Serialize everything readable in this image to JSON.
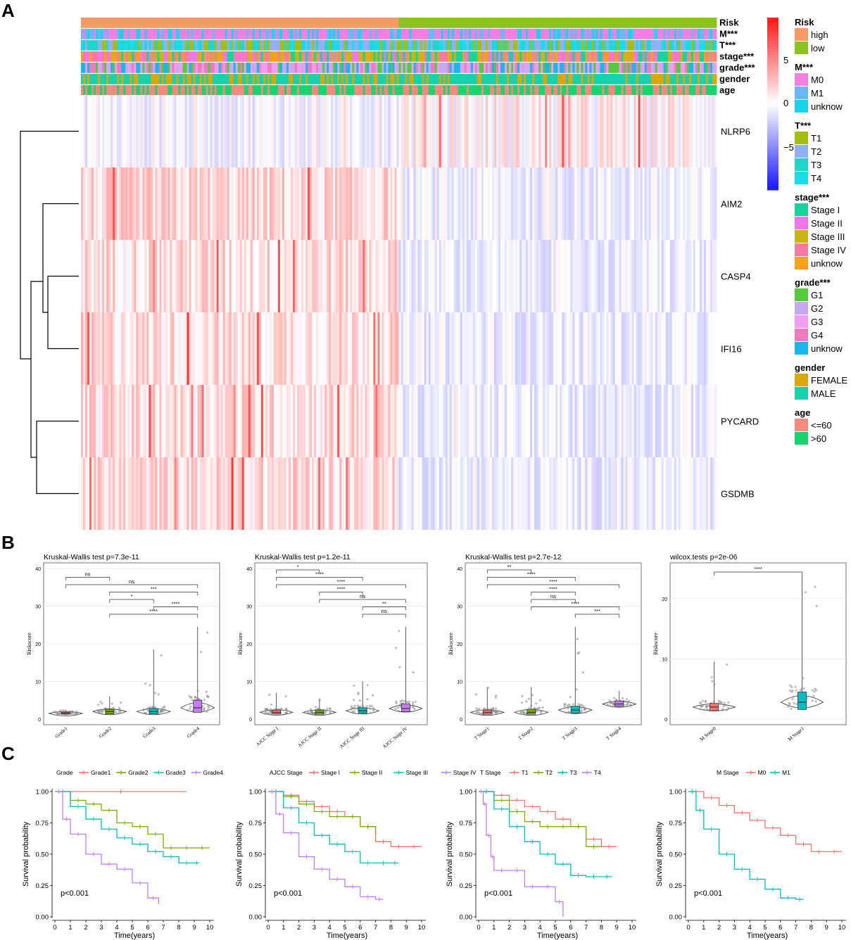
{
  "panels": {
    "A": "A",
    "B": "B",
    "C": "C"
  },
  "heatmap": {
    "colors": {
      "high": "#f89a63",
      "low": "#8cc220",
      "pos": "#ff2020",
      "mid": "#ffffff",
      "neg": "#2020ff"
    },
    "annotation_rows": [
      "Risk",
      "M***",
      "T***",
      "stage***",
      "grade***",
      "gender",
      "age"
    ],
    "genes": [
      "NLRP6",
      "AIM2",
      "CASP4",
      "IFI16",
      "PYCARD",
      "GSDMB"
    ],
    "scale_ticks": [
      "5",
      "0",
      "−5"
    ],
    "legend": [
      {
        "title": "Risk",
        "items": [
          {
            "label": "high",
            "color": "#f89a63"
          },
          {
            "label": "low",
            "color": "#8cc220"
          }
        ]
      },
      {
        "title": "M***",
        "items": [
          {
            "label": "M0",
            "color": "#f57fe0"
          },
          {
            "label": "M1",
            "color": "#6bb6f7"
          },
          {
            "label": "unknow",
            "color": "#18d2f0"
          }
        ]
      },
      {
        "title": "T***",
        "items": [
          {
            "label": "T1",
            "color": "#a6be0a"
          },
          {
            "label": "T2",
            "color": "#8fb0f5"
          },
          {
            "label": "T3",
            "color": "#1fd6cb"
          },
          {
            "label": "T4",
            "color": "#16dcec"
          }
        ]
      },
      {
        "title": "stage***",
        "items": [
          {
            "label": "Stage I",
            "color": "#18d39b"
          },
          {
            "label": "Stage II",
            "color": "#f077eb"
          },
          {
            "label": "Stage III",
            "color": "#c9b412"
          },
          {
            "label": "Stage IV",
            "color": "#f77aa5"
          },
          {
            "label": "unknow",
            "color": "#f7a11d"
          }
        ]
      },
      {
        "title": "grade***",
        "items": [
          {
            "label": "G1",
            "color": "#52cb3c"
          },
          {
            "label": "G2",
            "color": "#c7a9f2"
          },
          {
            "label": "G3",
            "color": "#f19bf1"
          },
          {
            "label": "G4",
            "color": "#f07ac0"
          },
          {
            "label": "unknow",
            "color": "#19b6ee"
          }
        ]
      },
      {
        "title": "gender",
        "items": [
          {
            "label": "FEMALE",
            "color": "#d9a70a"
          },
          {
            "label": "MALE",
            "color": "#18d1ad"
          }
        ]
      },
      {
        "title": "age",
        "items": [
          {
            "label": "<=60",
            "color": "#f78a7c"
          },
          {
            "label": ">60",
            "color": "#18d46f"
          }
        ]
      }
    ]
  },
  "chart_data": [
    {
      "type": "violin_box",
      "title": "Kruskal-Wallis test p=7.3e-11",
      "ylabel": "Riskscore",
      "ylim": [
        0,
        40
      ],
      "yticks": [
        0,
        10,
        20,
        30,
        40
      ],
      "categories": [
        "Grade1",
        "Grade2",
        "Grade3",
        "Grade4"
      ],
      "medians": [
        1.5,
        2.0,
        2.0,
        3.0
      ],
      "q1": [
        1.3,
        1.4,
        1.4,
        1.8
      ],
      "q3": [
        1.8,
        2.6,
        2.8,
        5.0
      ],
      "max": [
        2.5,
        6,
        18.5,
        24.5
      ],
      "box_colors": [
        "#f8766d",
        "#7cae00",
        "#00bfc4",
        "#c77cff"
      ],
      "comparisons": [
        {
          "from": 0,
          "to": 1,
          "label": "ns"
        },
        {
          "from": 0,
          "to": 3,
          "label": "ns"
        },
        {
          "from": 1,
          "to": 3,
          "label": "***"
        },
        {
          "from": 1,
          "to": 2,
          "label": "*"
        },
        {
          "from": 2,
          "to": 3,
          "label": "****"
        },
        {
          "from": 1,
          "to": 3,
          "label": "****"
        }
      ]
    },
    {
      "type": "violin_box",
      "title": "Kruskal-Wallis test p=1.2e-11",
      "ylabel": "Riskscore",
      "ylim": [
        0,
        40
      ],
      "yticks": [
        0,
        10,
        20,
        30,
        40
      ],
      "categories": [
        "AJCC Stage I",
        "AJCC Stage II",
        "AJCC Stage III",
        "AJCC Stage IV"
      ],
      "medians": [
        1.8,
        1.8,
        2.2,
        2.8
      ],
      "q1": [
        1.4,
        1.3,
        1.6,
        2.0
      ],
      "q3": [
        2.4,
        2.4,
        3.0,
        4.0
      ],
      "max": [
        7,
        5.5,
        10,
        24.5
      ],
      "box_colors": [
        "#f8766d",
        "#7cae00",
        "#00bfc4",
        "#c77cff"
      ],
      "comparisons": [
        {
          "from": 0,
          "to": 1,
          "label": "*"
        },
        {
          "from": 0,
          "to": 2,
          "label": "****"
        },
        {
          "from": 0,
          "to": 3,
          "label": "****"
        },
        {
          "from": 1,
          "to": 2,
          "label": "****"
        },
        {
          "from": 1,
          "to": 3,
          "label": "ns"
        },
        {
          "from": 2,
          "to": 3,
          "label": "**"
        },
        {
          "from": 2,
          "to": 3,
          "label": "ns"
        }
      ]
    },
    {
      "type": "violin_box",
      "title": "Kruskal-Wallis test p=2.7e-12",
      "ylabel": "Riskscore",
      "ylim": [
        0,
        40
      ],
      "yticks": [
        0,
        10,
        20,
        30,
        40
      ],
      "categories": [
        "T Stage1",
        "T Stage2",
        "T Stage3",
        "T Stage4"
      ],
      "medians": [
        1.8,
        1.8,
        2.4,
        4.0
      ],
      "q1": [
        1.3,
        1.3,
        1.6,
        3.4
      ],
      "q3": [
        2.4,
        2.6,
        3.4,
        4.8
      ],
      "max": [
        8.5,
        8.5,
        24.5,
        7.5
      ],
      "box_colors": [
        "#f8766d",
        "#7cae00",
        "#00bfc4",
        "#c77cff"
      ],
      "comparisons": [
        {
          "from": 0,
          "to": 1,
          "label": "**"
        },
        {
          "from": 0,
          "to": 2,
          "label": "****"
        },
        {
          "from": 0,
          "to": 3,
          "label": "****"
        },
        {
          "from": 1,
          "to": 2,
          "label": "****"
        },
        {
          "from": 1,
          "to": 2,
          "label": "ns"
        },
        {
          "from": 1,
          "to": 3,
          "label": "****"
        },
        {
          "from": 2,
          "to": 3,
          "label": "***"
        }
      ]
    },
    {
      "type": "violin_box",
      "title": "wilcox.tests p=2e-06",
      "ylabel": "Riskscore",
      "ylim": [
        0,
        25
      ],
      "yticks": [
        0,
        10,
        20
      ],
      "categories": [
        "M Stage0",
        "M Stage1"
      ],
      "medians": [
        2.0,
        2.8
      ],
      "q1": [
        1.4,
        1.6
      ],
      "q3": [
        2.6,
        4.5
      ],
      "max": [
        9.5,
        24
      ],
      "box_colors": [
        "#f8766d",
        "#00bfc4"
      ],
      "comparisons": [
        {
          "from": 0,
          "to": 1,
          "label": "****"
        }
      ]
    },
    {
      "type": "line",
      "subtype": "kaplan_meier",
      "legend_title": "Grade",
      "xlabel": "Time(years)",
      "ylabel": "Survival probability",
      "xlim": [
        0,
        10
      ],
      "ylim": [
        0,
        1
      ],
      "xticks": [
        0,
        1,
        2,
        3,
        4,
        5,
        6,
        7,
        8,
        9,
        10
      ],
      "yticks": [
        "0.00",
        "0.25",
        "0.50",
        "0.75",
        "1.00"
      ],
      "pvalue": "p<0.001",
      "series": [
        {
          "name": "Grade1",
          "color": "#f8766d",
          "x": [
            0,
            8.5
          ],
          "y": [
            1.0,
            1.0
          ]
        },
        {
          "name": "Grade2",
          "color": "#7cae00",
          "x": [
            0,
            1,
            2,
            3,
            4,
            5,
            6,
            7,
            8,
            9,
            10
          ],
          "y": [
            1.0,
            0.93,
            0.9,
            0.85,
            0.75,
            0.72,
            0.66,
            0.55,
            0.55,
            0.55,
            0.55
          ]
        },
        {
          "name": "Grade3",
          "color": "#00bfc4",
          "x": [
            0,
            1,
            2,
            3,
            4,
            5,
            6,
            7,
            8,
            9,
            9.3
          ],
          "y": [
            1.0,
            0.88,
            0.78,
            0.7,
            0.63,
            0.58,
            0.52,
            0.48,
            0.43,
            0.43,
            0.43
          ]
        },
        {
          "name": "Grade4",
          "color": "#c77cff",
          "x": [
            0,
            0.5,
            1,
            2,
            3,
            4,
            5,
            6,
            6.7
          ],
          "y": [
            1.0,
            0.78,
            0.66,
            0.5,
            0.42,
            0.38,
            0.27,
            0.15,
            0.1
          ]
        }
      ]
    },
    {
      "type": "line",
      "subtype": "kaplan_meier",
      "legend_title": "AJCC Stage",
      "xlabel": "Time(years)",
      "ylabel": "Survival probability",
      "xlim": [
        0,
        10
      ],
      "ylim": [
        0,
        1
      ],
      "xticks": [
        0,
        1,
        2,
        3,
        4,
        5,
        6,
        7,
        8,
        9,
        10
      ],
      "yticks": [
        "0.00",
        "0.25",
        "0.50",
        "0.75",
        "1.00"
      ],
      "pvalue": "p<0.001",
      "series": [
        {
          "name": "Stage I",
          "color": "#f8766d",
          "x": [
            0,
            1,
            2,
            3,
            4,
            5,
            6,
            7,
            8,
            9,
            10
          ],
          "y": [
            1.0,
            0.97,
            0.92,
            0.88,
            0.84,
            0.8,
            0.72,
            0.6,
            0.56,
            0.56,
            0.56
          ]
        },
        {
          "name": "Stage II",
          "color": "#7cae00",
          "x": [
            0,
            1,
            2,
            3,
            4,
            5,
            6,
            7
          ],
          "y": [
            1.0,
            0.96,
            0.9,
            0.84,
            0.8,
            0.8,
            0.72,
            0.66
          ]
        },
        {
          "name": "Stage III",
          "color": "#00bfc4",
          "x": [
            0,
            1,
            2,
            3,
            4,
            5,
            6,
            7,
            8,
            8.5
          ],
          "y": [
            1.0,
            0.87,
            0.75,
            0.65,
            0.58,
            0.52,
            0.43,
            0.43,
            0.43,
            0.43
          ]
        },
        {
          "name": "Stage IV",
          "color": "#c77cff",
          "x": [
            0,
            0.5,
            1,
            2,
            3,
            4,
            5,
            6,
            7,
            7.5
          ],
          "y": [
            1.0,
            0.82,
            0.67,
            0.48,
            0.38,
            0.3,
            0.24,
            0.16,
            0.14,
            0.14
          ]
        }
      ]
    },
    {
      "type": "line",
      "subtype": "kaplan_meier",
      "legend_title": "T Stage",
      "xlabel": "Time(years)",
      "ylabel": "Survival probability",
      "xlim": [
        0,
        10
      ],
      "ylim": [
        0,
        1
      ],
      "xticks": [
        0,
        1,
        2,
        3,
        4,
        5,
        6,
        7,
        8,
        9,
        10
      ],
      "yticks": [
        "0.00",
        "0.25",
        "0.50",
        "0.75",
        "1.00"
      ],
      "pvalue": "p<0.001",
      "series": [
        {
          "name": "T1",
          "color": "#f8766d",
          "x": [
            0,
            1,
            2,
            3,
            4,
            5,
            6,
            7,
            8,
            9
          ],
          "y": [
            1.0,
            0.97,
            0.93,
            0.88,
            0.84,
            0.78,
            0.72,
            0.62,
            0.56,
            0.56
          ]
        },
        {
          "name": "T2",
          "color": "#7cae00",
          "x": [
            0,
            1,
            2,
            3,
            4,
            5,
            6,
            7,
            8
          ],
          "y": [
            1.0,
            0.93,
            0.84,
            0.76,
            0.72,
            0.72,
            0.72,
            0.56,
            0.56
          ]
        },
        {
          "name": "T3",
          "color": "#00bfc4",
          "x": [
            0,
            1,
            2,
            3,
            4,
            5,
            6,
            7,
            8,
            8.7
          ],
          "y": [
            1.0,
            0.86,
            0.72,
            0.6,
            0.5,
            0.42,
            0.33,
            0.32,
            0.32,
            0.32
          ]
        },
        {
          "name": "T4",
          "color": "#c77cff",
          "x": [
            0,
            0.3,
            0.5,
            0.8,
            1,
            2,
            3,
            4,
            5,
            5.5
          ],
          "y": [
            1.0,
            0.9,
            0.65,
            0.48,
            0.37,
            0.37,
            0.24,
            0.24,
            0.12,
            0.0
          ]
        }
      ]
    },
    {
      "type": "line",
      "subtype": "kaplan_meier",
      "legend_title": "M Stage",
      "xlabel": "Time(years)",
      "ylabel": "Survival probability",
      "xlim": [
        0,
        10
      ],
      "ylim": [
        0,
        1
      ],
      "xticks": [
        0,
        1,
        2,
        3,
        4,
        5,
        6,
        7,
        8,
        9,
        10
      ],
      "yticks": [
        "0.00",
        "0.25",
        "0.50",
        "0.75",
        "1.00"
      ],
      "pvalue": "p<0.001",
      "series": [
        {
          "name": "M0",
          "color": "#f8766d",
          "x": [
            0,
            1,
            2,
            3,
            4,
            5,
            6,
            7,
            8,
            9,
            10
          ],
          "y": [
            1.0,
            0.95,
            0.89,
            0.83,
            0.77,
            0.71,
            0.65,
            0.58,
            0.52,
            0.52,
            0.52
          ]
        },
        {
          "name": "M1",
          "color": "#00bfc4",
          "x": [
            0,
            0.5,
            1,
            2,
            3,
            4,
            5,
            6,
            7,
            7.5
          ],
          "y": [
            1.0,
            0.85,
            0.7,
            0.5,
            0.38,
            0.3,
            0.22,
            0.15,
            0.14,
            0.14
          ]
        }
      ]
    }
  ]
}
